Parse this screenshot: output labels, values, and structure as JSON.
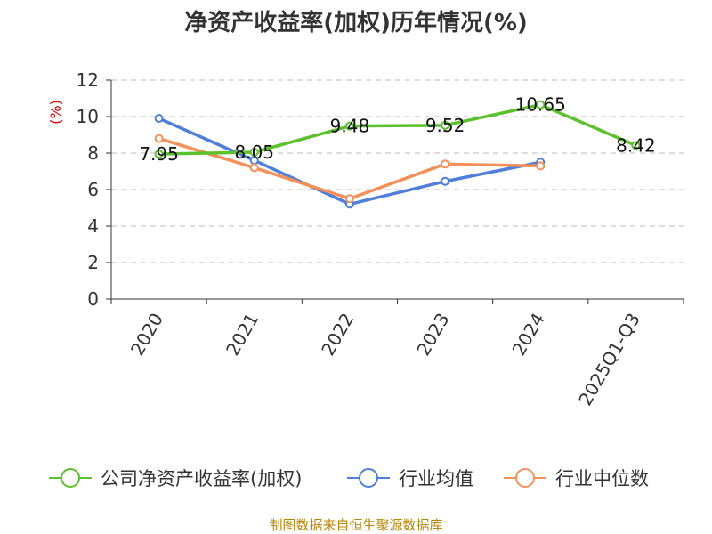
{
  "chart_data": {
    "type": "line",
    "title": "净资产收益率(加权)历年情况(%)",
    "ylabel": "(%)",
    "xlabel": "",
    "categories": [
      "2020",
      "2021",
      "2022",
      "2023",
      "2024",
      "2025Q1-Q3"
    ],
    "ylim": [
      0,
      12
    ],
    "yticks": [
      0,
      2,
      4,
      6,
      8,
      10,
      12
    ],
    "grid": "horizontal-dashed",
    "legend_position": "bottom",
    "series": [
      {
        "name": "公司净资产收益率(加权)",
        "color": "#5cc12d",
        "values": [
          7.95,
          8.05,
          9.48,
          9.52,
          10.65,
          8.42
        ],
        "labels": [
          "7.95",
          "8.05",
          "9.48",
          "9.52",
          "10.65",
          "8.42"
        ]
      },
      {
        "name": "行业均值",
        "color": "#4f7fd8",
        "values": [
          9.9,
          7.6,
          5.2,
          6.45,
          7.5,
          null
        ]
      },
      {
        "name": "行业中位数",
        "color": "#f5905a",
        "values": [
          8.8,
          7.2,
          5.5,
          7.4,
          7.3,
          null
        ]
      }
    ]
  },
  "source": "制图数据来自恒生聚源数据库"
}
